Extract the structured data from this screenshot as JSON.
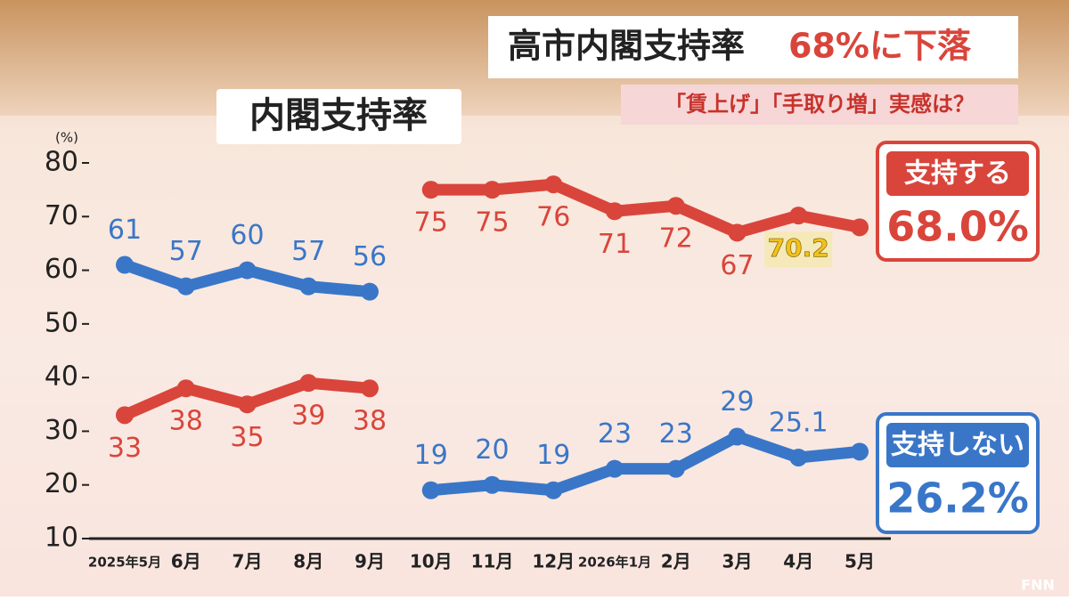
{
  "chart_data": {
    "type": "line",
    "title": "高市内閣支持率",
    "title_highlight": "68%に下落",
    "subtitle": "「賃上げ」「手取り増」実感は？",
    "panel_label": "内閣支持率",
    "y_unit": "(%)",
    "logo": "FNN",
    "categories": [
      "2025年5月",
      "6月",
      "7月",
      "8月",
      "9月",
      "10月",
      "11月",
      "12月",
      "2026年1月",
      "2月",
      "3月",
      "4月",
      "5月"
    ],
    "line_breaks_before": [
      5
    ],
    "series": [
      {
        "name": "支持する",
        "color": "#d9453b",
        "label_position": "below",
        "highlight_index": 11,
        "values": [
          33,
          38,
          35,
          39,
          38,
          75,
          75,
          76,
          71,
          72,
          67,
          70.2,
          68.0
        ],
        "value_labels": [
          "33",
          "38",
          "35",
          "39",
          "38",
          "75",
          "75",
          "76",
          "71",
          "72",
          "67",
          "70.2",
          "68.0%"
        ]
      },
      {
        "name": "支持しない",
        "color": "#3a76c8",
        "label_position": "above",
        "values": [
          61,
          57,
          60,
          57,
          56,
          19,
          20,
          19,
          23,
          23,
          29,
          25.1,
          26.2
        ],
        "value_labels": [
          "61",
          "57",
          "60",
          "57",
          "56",
          "19",
          "20",
          "19",
          "23",
          "23",
          "29",
          "25.1",
          "26.2%"
        ]
      }
    ],
    "ylim": [
      10,
      80
    ],
    "yticks": [
      10,
      20,
      30,
      40,
      50,
      60,
      70,
      80
    ]
  }
}
